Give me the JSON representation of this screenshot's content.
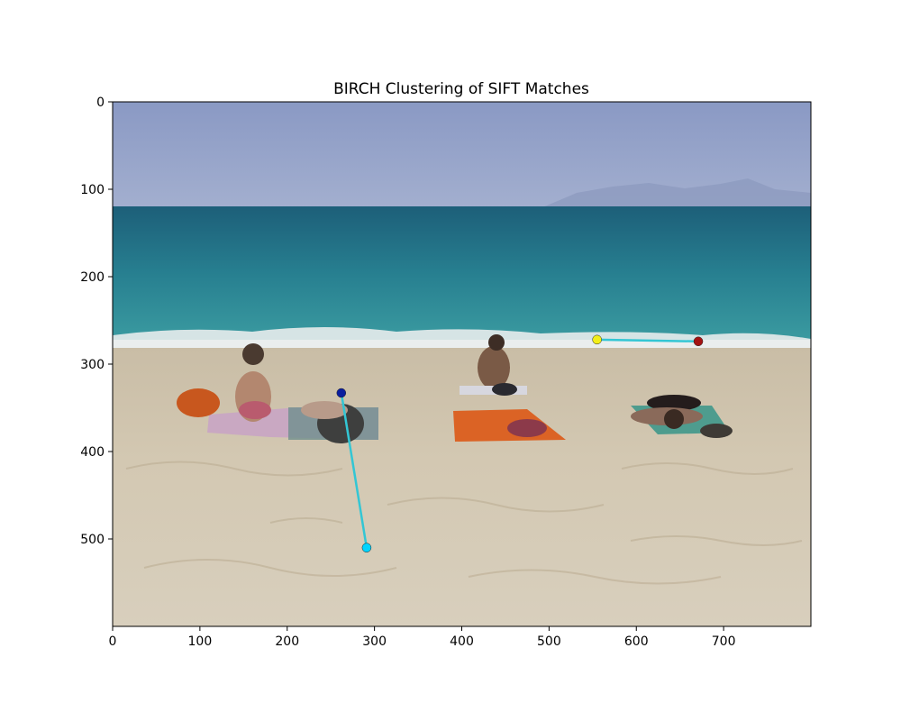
{
  "chart_data": {
    "type": "scatter",
    "title": "BIRCH Clustering of SIFT Matches",
    "xlabel": "",
    "ylabel": "",
    "xlim": [
      0,
      800
    ],
    "ylim": [
      600,
      0
    ],
    "y_axis_inverted": true,
    "grid": false,
    "x_ticks": [
      0,
      100,
      200,
      300,
      400,
      500,
      600,
      700
    ],
    "y_ticks": [
      0,
      100,
      200,
      300,
      400,
      500
    ],
    "x_tick_labels": [
      "0",
      "100",
      "200",
      "300",
      "400",
      "500",
      "600",
      "700"
    ],
    "y_tick_labels": [
      "0",
      "100",
      "200",
      "300",
      "400",
      "500"
    ],
    "background_image": "beach-scene-photo",
    "match_lines": [
      {
        "x": [
          262,
          291
        ],
        "y": [
          333,
          510
        ],
        "line_color": "#33c6d4",
        "start_color": "#0a1d9e",
        "end_color": "#00d4ff"
      },
      {
        "x": [
          555,
          671
        ],
        "y": [
          272,
          274
        ],
        "line_color": "#33c6d4",
        "start_color": "#f2ee1a",
        "end_color": "#a31212"
      }
    ]
  }
}
